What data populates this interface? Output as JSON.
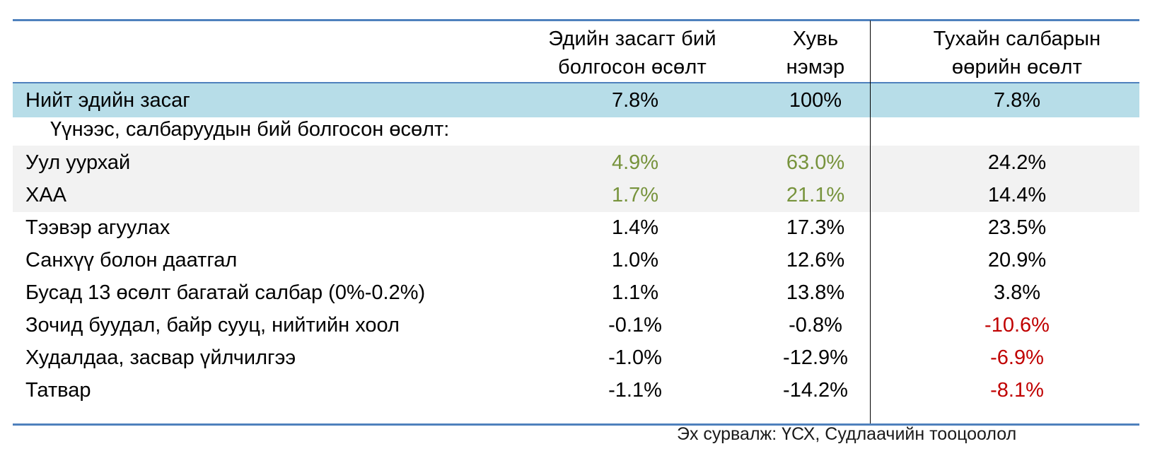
{
  "header": {
    "col1": [
      "Эдийн засагт бий",
      "болгосон өсөлт"
    ],
    "col2": [
      "Хувь",
      "нэмэр"
    ],
    "col3": [
      "Тухайн салбарын",
      "өөрийн өсөлт"
    ]
  },
  "total": {
    "label": "Нийт эдийн засаг",
    "growth": "7.8%",
    "contribution": "100%",
    "sector_growth": "7.8%"
  },
  "subheader": "Үүнээс, салбаруудын бий болгосон өсөлт:",
  "rows": [
    {
      "label": "Уул уурхай",
      "growth": "4.9%",
      "contribution": "63.0%",
      "sector_growth": "24.2%"
    },
    {
      "label": "ХАА",
      "growth": "1.7%",
      "contribution": "21.1%",
      "sector_growth": "14.4%"
    },
    {
      "label": "Тээвэр агуулах",
      "growth": "1.4%",
      "contribution": "17.3%",
      "sector_growth": "23.5%"
    },
    {
      "label": "Санхүү болон даатгал",
      "growth": "1.0%",
      "contribution": "12.6%",
      "sector_growth": "20.9%"
    },
    {
      "label": "Бусад 13 өсөлт багатай салбар (0%-0.2%)",
      "growth": "1.1%",
      "contribution": "13.8%",
      "sector_growth": "3.8%"
    },
    {
      "label": "Зочид буудал, байр сууц, нийтийн хоол",
      "growth": "-0.1%",
      "contribution": "-0.8%",
      "sector_growth": "-10.6%"
    },
    {
      "label": "Худалдаа, засвар үйлчилгээ",
      "growth": "-1.0%",
      "contribution": "-12.9%",
      "sector_growth": "-6.9%"
    },
    {
      "label": "Татвар",
      "growth": "-1.1%",
      "contribution": "-14.2%",
      "sector_growth": "-8.1%"
    }
  ],
  "source": "Эх сурвалж: ҮСХ, Судлаачийн тооцоолол",
  "colors": {
    "rule": "#4f81bd",
    "total_fill": "#b7dde8",
    "shade_fill": "#f2f2f2",
    "positive_highlight": "#77933c",
    "negative_highlight": "#c00000"
  }
}
